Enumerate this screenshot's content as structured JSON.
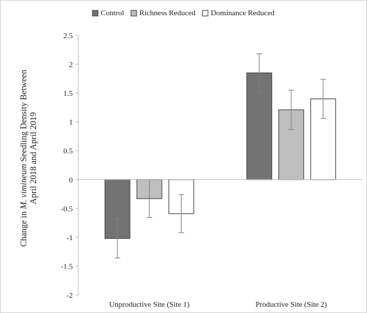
{
  "chart_data": {
    "type": "bar",
    "title": "",
    "xlabel": "",
    "ylabel_lines": [
      [
        {
          "text": "Change in ",
          "italic": false
        },
        {
          "text": "M. vimineum",
          "italic": true
        },
        {
          "text": " Seedling Density Between",
          "italic": false
        }
      ],
      [
        {
          "text": "April 2018 and April 2019",
          "italic": false
        }
      ]
    ],
    "categories": [
      "Unproductive Site (Site 1)",
      "Productive Site (Site 2)"
    ],
    "ylim": [
      -2,
      2.5
    ],
    "yticks": [
      "-2",
      "-1.5",
      "-1",
      "-0.5",
      "0",
      "0.5",
      "1",
      "1.5",
      "2",
      "2.5"
    ],
    "grid": false,
    "legend_position": "top",
    "series": [
      {
        "name": "Control",
        "color": "#737373",
        "values": [
          -1.02,
          1.85
        ],
        "errors": [
          0.34,
          0.33
        ]
      },
      {
        "name": "Richness Reduced",
        "color": "#bfbfbf",
        "values": [
          -0.33,
          1.21
        ],
        "errors": [
          0.33,
          0.34
        ]
      },
      {
        "name": "Dominance Reduced",
        "color": "#ffffff",
        "values": [
          -0.59,
          1.4
        ],
        "errors": [
          0.33,
          0.34
        ]
      }
    ]
  }
}
